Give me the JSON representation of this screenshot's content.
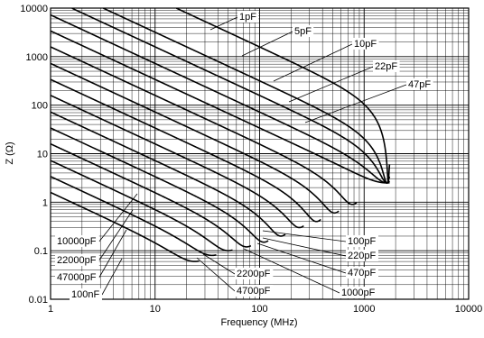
{
  "chart_data": {
    "type": "line",
    "title": "",
    "xlabel": "Frequency (MHz)",
    "ylabel": "Z (Ω)",
    "xscale": "log",
    "yscale": "log",
    "xlim": [
      1,
      10000
    ],
    "ylim": [
      0.01,
      10000
    ],
    "grid": true,
    "x_ticks": [
      "1",
      "10",
      "100",
      "1000",
      "10000"
    ],
    "y_ticks": [
      "10000",
      "1000",
      "100",
      "10",
      "1",
      "0.1",
      "0.01"
    ],
    "series": [
      {
        "name": "1pF",
        "resonance_mhz": 1700,
        "min_impedance_ohm": 2.5
      },
      {
        "name": "5pF",
        "resonance_mhz": 1650,
        "min_impedance_ohm": 2.5
      },
      {
        "name": "10pF",
        "resonance_mhz": 1650,
        "min_impedance_ohm": 2.5
      },
      {
        "name": "22pF",
        "resonance_mhz": 1650,
        "min_impedance_ohm": 2.5
      },
      {
        "name": "47pF",
        "resonance_mhz": 1650,
        "min_impedance_ohm": 2.5
      },
      {
        "name": "100pF",
        "resonance_mhz": 770,
        "min_impedance_ohm": 0.9
      },
      {
        "name": "220pF",
        "resonance_mhz": 520,
        "min_impedance_ohm": 0.6
      },
      {
        "name": "470pF",
        "resonance_mhz": 350,
        "min_impedance_ohm": 0.4
      },
      {
        "name": "1000pF",
        "resonance_mhz": 240,
        "min_impedance_ohm": 0.3
      },
      {
        "name": "2200pF",
        "resonance_mhz": 160,
        "min_impedance_ohm": 0.2
      },
      {
        "name": "4700pF",
        "resonance_mhz": 110,
        "min_impedance_ohm": 0.15
      },
      {
        "name": "10000pF",
        "resonance_mhz": 75,
        "min_impedance_ohm": 0.12
      },
      {
        "name": "22000pF",
        "resonance_mhz": 50,
        "min_impedance_ohm": 0.1
      },
      {
        "name": "47000pF",
        "resonance_mhz": 35,
        "min_impedance_ohm": 0.08
      },
      {
        "name": "100nF",
        "resonance_mhz": 24,
        "min_impedance_ohm": 0.06
      }
    ]
  }
}
